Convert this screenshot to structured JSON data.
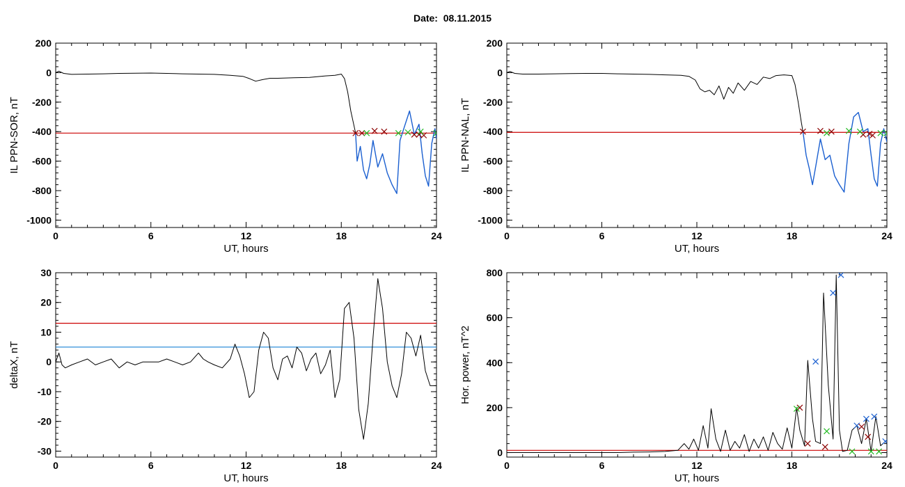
{
  "page": {
    "title": "Date:  08.11.2015"
  },
  "colors": {
    "black": "#000000",
    "red": "#cc0000",
    "blue": "#1a5fd0",
    "light_blue": "#2f8fd8",
    "green": "#22bb22",
    "dark_red": "#8b0000"
  },
  "chart_data": [
    {
      "type": "line",
      "xlabel": "UT, hours",
      "ylabel": "IL PPN-SOR, nT",
      "xlim": [
        0,
        24
      ],
      "ylim": [
        -1050,
        200
      ],
      "xticks": [
        "0",
        "6",
        "12",
        "18",
        "24"
      ],
      "yticks": [
        "200",
        "0",
        "-200",
        "-400",
        "-600",
        "-800",
        "-1000"
      ],
      "threshold": -410,
      "series": [
        {
          "color": "black",
          "x": [
            0,
            0.2,
            0.5,
            1,
            2,
            3,
            4,
            5,
            6,
            7,
            8,
            9,
            10,
            11,
            11.8,
            12.2,
            12.6,
            13,
            13.5,
            14,
            15,
            16,
            17,
            17.6,
            18,
            18.2,
            18.4,
            18.6,
            18.8,
            18.9
          ],
          "y": [
            0,
            10,
            -5,
            -12,
            -10,
            -8,
            -5,
            -4,
            -3,
            -5,
            -8,
            -10,
            -12,
            -18,
            -25,
            -40,
            -58,
            -48,
            -38,
            -38,
            -35,
            -32,
            -22,
            -18,
            -10,
            -40,
            -130,
            -260,
            -360,
            -410
          ]
        },
        {
          "color": "blue",
          "x": [
            18.9,
            19.0,
            19.2,
            19.4,
            19.6,
            19.8,
            20.0,
            20.3,
            20.6,
            20.9,
            21.2,
            21.5,
            21.7,
            22.0,
            22.3,
            22.6,
            22.9,
            23.1,
            23.3,
            23.5,
            23.7,
            23.9,
            24.0
          ],
          "y": [
            -410,
            -600,
            -500,
            -660,
            -720,
            -620,
            -460,
            -640,
            -550,
            -680,
            -760,
            -820,
            -460,
            -360,
            -260,
            -420,
            -350,
            -550,
            -700,
            -770,
            -480,
            -380,
            -450
          ]
        }
      ],
      "markers": [
        {
          "type": "x",
          "color": "dark_red",
          "x": [
            18.9,
            19.3,
            20.1,
            20.7,
            22.6,
            22.9,
            23.2
          ],
          "y": [
            -410,
            -410,
            -395,
            -400,
            -420,
            -420,
            -425
          ]
        },
        {
          "type": "x",
          "color": "green",
          "x": [
            19.6,
            21.6,
            22.2,
            23.0,
            24.0
          ],
          "y": [
            -410,
            -410,
            -405,
            -400,
            -410
          ]
        }
      ]
    },
    {
      "type": "line",
      "xlabel": "UT, hours",
      "ylabel": "IL PPN-NAL, nT",
      "xlim": [
        0,
        24
      ],
      "ylim": [
        -1050,
        200
      ],
      "xticks": [
        "0",
        "6",
        "12",
        "18",
        "24"
      ],
      "yticks": [
        "200",
        "0",
        "-200",
        "-400",
        "-600",
        "-800",
        "-1000"
      ],
      "threshold": -405,
      "series": [
        {
          "color": "black",
          "x": [
            0,
            0.2,
            0.5,
            1,
            2,
            3,
            4,
            5,
            6,
            7,
            8,
            9,
            10,
            11,
            11.5,
            11.9,
            12.2,
            12.5,
            12.8,
            13.1,
            13.4,
            13.7,
            14.0,
            14.3,
            14.6,
            15.0,
            15.4,
            15.8,
            16.2,
            16.6,
            17.0,
            17.5,
            18.0,
            18.2,
            18.4,
            18.6,
            18.7
          ],
          "y": [
            0,
            8,
            -5,
            -10,
            -10,
            -8,
            -6,
            -5,
            -5,
            -8,
            -10,
            -12,
            -15,
            -18,
            -25,
            -50,
            -110,
            -130,
            -120,
            -150,
            -90,
            -180,
            -100,
            -140,
            -70,
            -120,
            -60,
            -80,
            -30,
            -40,
            -20,
            -15,
            -20,
            -80,
            -200,
            -340,
            -400
          ]
        },
        {
          "color": "blue",
          "x": [
            18.7,
            18.9,
            19.1,
            19.3,
            19.5,
            19.8,
            20.1,
            20.4,
            20.7,
            21.0,
            21.3,
            21.6,
            21.9,
            22.2,
            22.5,
            22.8,
            23.0,
            23.2,
            23.4,
            23.6,
            23.8,
            24.0
          ],
          "y": [
            -400,
            -560,
            -650,
            -760,
            -640,
            -450,
            -590,
            -560,
            -700,
            -760,
            -810,
            -480,
            -300,
            -270,
            -400,
            -380,
            -560,
            -720,
            -770,
            -480,
            -380,
            -470
          ]
        }
      ],
      "markers": [
        {
          "type": "x",
          "color": "dark_red",
          "x": [
            18.7,
            19.8,
            20.5,
            22.5,
            22.9,
            23.1
          ],
          "y": [
            -400,
            -395,
            -400,
            -420,
            -415,
            -425
          ]
        },
        {
          "type": "x",
          "color": "green",
          "x": [
            20.2,
            21.6,
            22.3,
            23.6,
            24.0
          ],
          "y": [
            -410,
            -395,
            -400,
            -410,
            -410
          ]
        }
      ]
    },
    {
      "type": "line",
      "xlabel": "UT, hours",
      "ylabel": "deltaX, nT",
      "xlim": [
        0,
        24
      ],
      "ylim": [
        -32,
        30
      ],
      "xticks": [
        "0",
        "6",
        "12",
        "18",
        "24"
      ],
      "yticks": [
        "30",
        "20",
        "10",
        "0",
        "-10",
        "-20",
        "-30"
      ],
      "thresholds": [
        {
          "value": 13,
          "color": "red"
        },
        {
          "value": 5,
          "color": "light_blue"
        }
      ],
      "series": [
        {
          "color": "black",
          "x": [
            0,
            0.2,
            0.4,
            0.6,
            1.0,
            1.5,
            2.0,
            2.5,
            3.0,
            3.5,
            4.0,
            4.5,
            5.0,
            5.5,
            6.0,
            6.5,
            7.0,
            7.5,
            8.0,
            8.5,
            9.0,
            9.3,
            9.6,
            10.0,
            10.5,
            11.0,
            11.3,
            11.6,
            11.9,
            12.2,
            12.5,
            12.8,
            13.1,
            13.4,
            13.7,
            14.0,
            14.3,
            14.6,
            14.9,
            15.2,
            15.5,
            15.8,
            16.1,
            16.4,
            16.7,
            17.0,
            17.3,
            17.6,
            17.9,
            18.2,
            18.5,
            18.8,
            19.1,
            19.4,
            19.7,
            20.0,
            20.3,
            20.6,
            20.9,
            21.2,
            21.5,
            21.8,
            22.1,
            22.4,
            22.7,
            23.0,
            23.3,
            23.6,
            23.9,
            24.0
          ],
          "y": [
            0,
            3,
            -1,
            -2,
            -1,
            0,
            1,
            -1,
            0,
            1,
            -2,
            0,
            -1,
            0,
            0,
            0,
            1,
            0,
            -1,
            0,
            3,
            1,
            0,
            -1,
            -2,
            1,
            6,
            2,
            -4,
            -12,
            -10,
            4,
            10,
            8,
            -2,
            -6,
            1,
            2,
            -2,
            5,
            3,
            -3,
            1,
            3,
            -4,
            -1,
            4,
            -12,
            -6,
            18,
            20,
            8,
            -16,
            -26,
            -14,
            8,
            28,
            18,
            0,
            -8,
            -12,
            -4,
            10,
            8,
            2,
            9,
            -3,
            -8,
            -8,
            -8
          ]
        }
      ]
    },
    {
      "type": "line",
      "xlabel": "UT, hours",
      "ylabel": "Hor. power, nT^2",
      "xlim": [
        0,
        24
      ],
      "ylim": [
        -20,
        800
      ],
      "xticks": [
        "0",
        "6",
        "12",
        "18",
        "24"
      ],
      "yticks": [
        "800",
        "600",
        "400",
        "200",
        "0"
      ],
      "threshold": 10,
      "series": [
        {
          "color": "black",
          "x": [
            0,
            1,
            2,
            3,
            4,
            5,
            6,
            7,
            8,
            9,
            10,
            10.8,
            11.2,
            11.5,
            11.8,
            12.1,
            12.4,
            12.7,
            12.9,
            13.2,
            13.5,
            13.8,
            14.1,
            14.4,
            14.7,
            15.0,
            15.3,
            15.6,
            15.9,
            16.2,
            16.5,
            16.8,
            17.1,
            17.4,
            17.7,
            18.0,
            18.3,
            18.5,
            18.8,
            19.0,
            19.3,
            19.5,
            19.8,
            20.0,
            20.3,
            20.6,
            20.8,
            21.0,
            21.2,
            21.5,
            21.8,
            22.1,
            22.4,
            22.7,
            23.0,
            23.3,
            23.6,
            23.9,
            24.0
          ],
          "y": [
            0,
            0,
            0,
            0,
            0,
            0,
            0,
            0,
            2,
            3,
            5,
            10,
            40,
            15,
            60,
            10,
            120,
            20,
            195,
            60,
            5,
            100,
            10,
            50,
            20,
            80,
            5,
            60,
            20,
            70,
            10,
            90,
            40,
            15,
            110,
            20,
            200,
            100,
            30,
            410,
            150,
            50,
            40,
            710,
            300,
            60,
            790,
            100,
            5,
            10,
            100,
            120,
            40,
            150,
            5,
            160,
            30,
            50,
            40
          ]
        }
      ],
      "markers": [
        {
          "type": "x",
          "color": "blue",
          "x": [
            19.5,
            20.6,
            21.1,
            22.1,
            22.7,
            23.2,
            23.9
          ],
          "y": [
            405,
            710,
            790,
            120,
            150,
            160,
            50
          ]
        },
        {
          "type": "x",
          "color": "dark_red",
          "x": [
            18.5,
            19.0,
            20.1,
            22.4,
            22.8
          ],
          "y": [
            200,
            40,
            25,
            115,
            70
          ]
        },
        {
          "type": "x",
          "color": "green",
          "x": [
            18.3,
            20.2,
            21.8,
            23.0,
            23.5
          ],
          "y": [
            195,
            95,
            5,
            5,
            5
          ]
        }
      ]
    }
  ]
}
